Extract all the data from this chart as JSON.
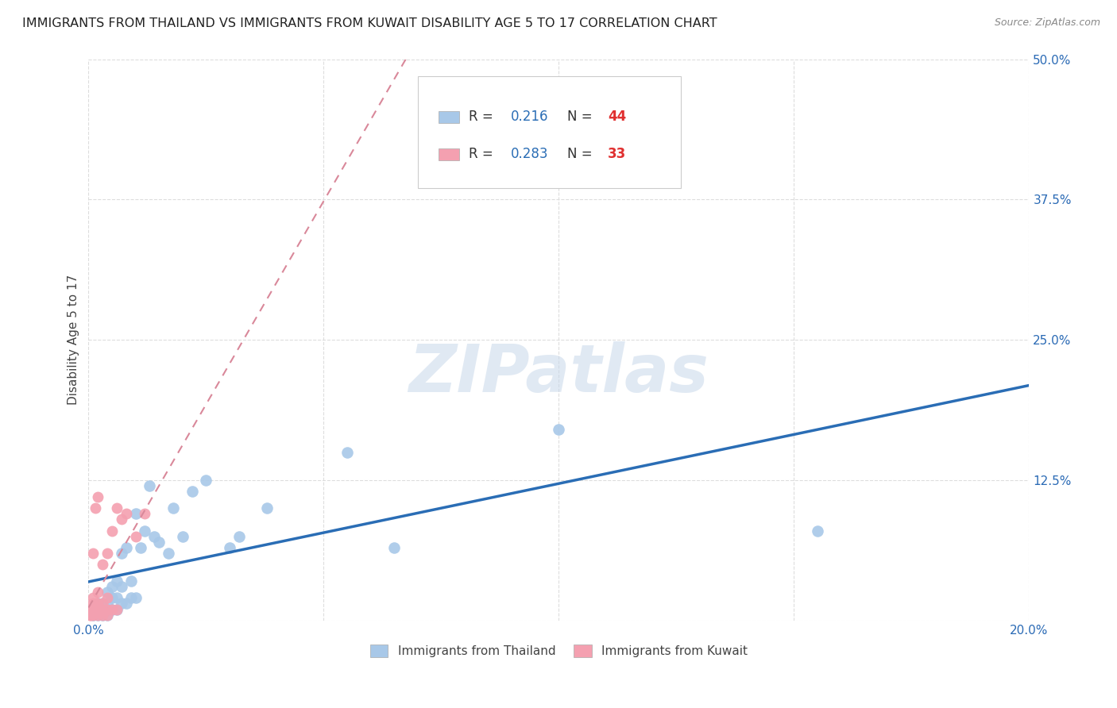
{
  "title": "IMMIGRANTS FROM THAILAND VS IMMIGRANTS FROM KUWAIT DISABILITY AGE 5 TO 17 CORRELATION CHART",
  "source": "Source: ZipAtlas.com",
  "ylabel_label": "Disability Age 5 to 17",
  "xlim": [
    0.0,
    0.2
  ],
  "ylim": [
    0.0,
    0.5
  ],
  "xticks": [
    0.0,
    0.05,
    0.1,
    0.15,
    0.2
  ],
  "yticks": [
    0.0,
    0.125,
    0.25,
    0.375,
    0.5
  ],
  "thailand_R": 0.216,
  "thailand_N": 44,
  "kuwait_R": 0.283,
  "kuwait_N": 33,
  "thailand_color": "#a8c8e8",
  "kuwait_color": "#f4a0b0",
  "thailand_line_color": "#2a6db5",
  "kuwait_line_color": "#d9889a",
  "legend_R_color": "#2a6db5",
  "legend_N_color": "#e03030",
  "thailand_x": [
    0.001,
    0.001,
    0.002,
    0.002,
    0.002,
    0.003,
    0.003,
    0.003,
    0.004,
    0.004,
    0.004,
    0.004,
    0.005,
    0.005,
    0.005,
    0.006,
    0.006,
    0.006,
    0.007,
    0.007,
    0.007,
    0.008,
    0.008,
    0.009,
    0.009,
    0.01,
    0.01,
    0.011,
    0.012,
    0.013,
    0.014,
    0.015,
    0.017,
    0.018,
    0.02,
    0.022,
    0.025,
    0.03,
    0.032,
    0.038,
    0.055,
    0.065,
    0.1,
    0.155
  ],
  "thailand_y": [
    0.005,
    0.01,
    0.005,
    0.01,
    0.015,
    0.005,
    0.01,
    0.015,
    0.005,
    0.01,
    0.015,
    0.025,
    0.01,
    0.02,
    0.03,
    0.01,
    0.02,
    0.035,
    0.015,
    0.03,
    0.06,
    0.015,
    0.065,
    0.02,
    0.035,
    0.02,
    0.095,
    0.065,
    0.08,
    0.12,
    0.075,
    0.07,
    0.06,
    0.1,
    0.075,
    0.115,
    0.125,
    0.065,
    0.075,
    0.1,
    0.15,
    0.065,
    0.17,
    0.08
  ],
  "kuwait_x": [
    0.0003,
    0.0004,
    0.0005,
    0.0006,
    0.0007,
    0.0008,
    0.001,
    0.001,
    0.001,
    0.001,
    0.001,
    0.0015,
    0.002,
    0.002,
    0.002,
    0.002,
    0.002,
    0.003,
    0.003,
    0.003,
    0.003,
    0.004,
    0.004,
    0.004,
    0.004,
    0.005,
    0.005,
    0.006,
    0.006,
    0.007,
    0.008,
    0.01,
    0.012
  ],
  "kuwait_y": [
    0.005,
    0.005,
    0.008,
    0.01,
    0.01,
    0.008,
    0.005,
    0.01,
    0.015,
    0.02,
    0.06,
    0.1,
    0.005,
    0.01,
    0.015,
    0.025,
    0.11,
    0.005,
    0.01,
    0.015,
    0.05,
    0.005,
    0.01,
    0.02,
    0.06,
    0.01,
    0.08,
    0.01,
    0.1,
    0.09,
    0.095,
    0.075,
    0.095
  ],
  "background_color": "#ffffff",
  "grid_color": "#dddddd",
  "title_fontsize": 11.5,
  "axis_label_fontsize": 11,
  "tick_fontsize": 11,
  "legend_fontsize": 13,
  "watermark": "ZIPatlas",
  "legend_label_thailand": "Immigrants from Thailand",
  "legend_label_kuwait": "Immigrants from Kuwait"
}
